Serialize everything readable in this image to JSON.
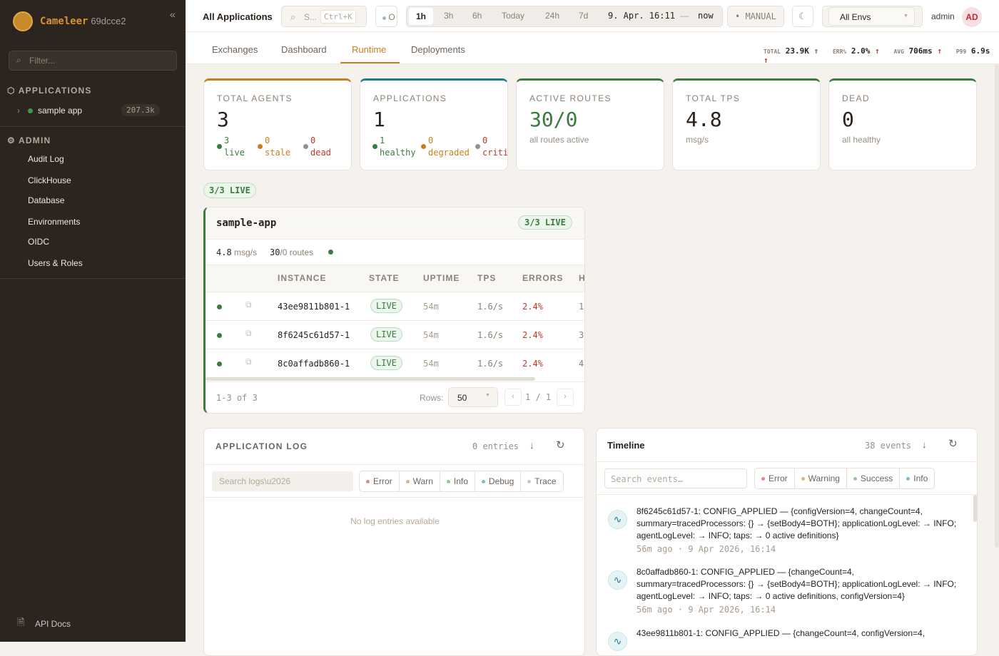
{
  "sidebar": {
    "brand": "Cameleer",
    "version": "69dcce2",
    "filter_placeholder": "Filter...",
    "applications_label": "APPLICATIONS",
    "apps": [
      {
        "name": "sample app",
        "count": "207.3k"
      }
    ],
    "admin_label": "ADMIN",
    "admin_items": [
      "Audit Log",
      "ClickHouse",
      "Database",
      "Environments",
      "OIDC",
      "Users & Roles"
    ],
    "api_docs": "API Docs"
  },
  "topbar": {
    "title": "All Applications",
    "search_placeholder": "S...",
    "search_shortcut": "Ctrl+K",
    "status": "O",
    "ranges": [
      "1h",
      "3h",
      "6h",
      "Today",
      "24h",
      "7d"
    ],
    "active_range": "1h",
    "range_from": "9. Apr. 16:11",
    "range_sep": "—",
    "range_to": "now",
    "refresh_mode": "MANUAL",
    "env": "All Envs",
    "user": "admin",
    "avatar": "AD"
  },
  "tabs": {
    "items": [
      "Exchanges",
      "Dashboard",
      "Runtime",
      "Deployments"
    ],
    "active": "Runtime"
  },
  "metrics": {
    "total_label": "TOTAL",
    "total": "23.9K",
    "err_label": "ERR%",
    "err": "2.0%",
    "avg_label": "AVG",
    "avg": "706ms",
    "p99_label": "P99",
    "p99": "6.9s",
    "arrow": "↑"
  },
  "kpis": [
    {
      "label": "TOTAL AGENTS",
      "value": "3",
      "color": "#c67f1c",
      "stats": [
        {
          "n": "3",
          "l": "live"
        },
        {
          "n": "0",
          "l": "stale"
        },
        {
          "n": "0",
          "l": "dead"
        }
      ]
    },
    {
      "label": "APPLICATIONS",
      "value": "1",
      "color": "#1f7a8c",
      "stats": [
        {
          "n": "1",
          "l": "healthy"
        },
        {
          "n": "0",
          "l": "degraded"
        },
        {
          "n": "0",
          "l": "criti"
        }
      ]
    },
    {
      "label": "ACTIVE ROUTES",
      "value": "30/0",
      "color": "#3d7a3f",
      "sub": "all routes active"
    },
    {
      "label": "TOTAL TPS",
      "value": "4.8",
      "color": "#c67f1c",
      "sub": "msg/s"
    },
    {
      "label": "DEAD",
      "value": "0",
      "color": "#3d7a3f",
      "sub": "all healthy"
    }
  ],
  "live_badge": "3/3 LIVE",
  "app_card": {
    "name": "sample-app",
    "badge": "3/3 LIVE",
    "tps": "4.8",
    "tps_unit": "msg/s",
    "routes": "30",
    "routes_rest": "/0 routes",
    "columns": [
      "INSTANCE",
      "STATE",
      "UPTIME",
      "TPS",
      "ERRORS",
      "H"
    ],
    "rows": [
      {
        "instance": "43ee9811b801-1",
        "state": "LIVE",
        "uptime": "54m",
        "tps": "1.6/s",
        "errors": "2.4%",
        "h": "1"
      },
      {
        "instance": "8f6245c61d57-1",
        "state": "LIVE",
        "uptime": "54m",
        "tps": "1.6/s",
        "errors": "2.4%",
        "h": "3"
      },
      {
        "instance": "8c0affadb860-1",
        "state": "LIVE",
        "uptime": "54m",
        "tps": "1.6/s",
        "errors": "2.4%",
        "h": "4"
      }
    ],
    "range": "1-3 of 3",
    "rows_label": "Rows:",
    "rows_value": "50",
    "page": "1 / 1",
    "prev": "‹",
    "next": "›"
  },
  "log": {
    "title": "APPLICATION LOG",
    "entries": "0 entries",
    "search_placeholder": "Search logs\\u2026",
    "levels": [
      {
        "l": "Error",
        "c": "#e08a8a"
      },
      {
        "l": "Warn",
        "c": "#e6b27a"
      },
      {
        "l": "Info",
        "c": "#9cc59e"
      },
      {
        "l": "Debug",
        "c": "#7fbcc8"
      },
      {
        "l": "Trace",
        "c": "#cfc8c0"
      }
    ],
    "empty": "No log entries available"
  },
  "timeline": {
    "title": "Timeline",
    "count": "38 events",
    "search_placeholder": "Search events…",
    "levels": [
      {
        "l": "Error",
        "c": "#e08a8a"
      },
      {
        "l": "Warning",
        "c": "#e6b27a"
      },
      {
        "l": "Success",
        "c": "#9cc59e"
      },
      {
        "l": "Info",
        "c": "#7fbcc8"
      }
    ],
    "events": [
      {
        "text": "8f6245c61d57-1: CONFIG_APPLIED — {configVersion=4, changeCount=4, summary=tracedProcessors: {} → {setBody4=BOTH}; applicationLogLevel: → INFO; agentLogLevel: → INFO; taps: → 0 active definitions}",
        "time": "56m ago · 9 Apr 2026, 16:14"
      },
      {
        "text": "8c0affadb860-1: CONFIG_APPLIED — {changeCount=4, summary=tracedProcessors: {} → {setBody4=BOTH}; applicationLogLevel: → INFO; agentLogLevel: → INFO; taps: → 0 active definitions, configVersion=4}",
        "time": "56m ago · 9 Apr 2026, 16:14"
      },
      {
        "text": "43ee9811b801-1: CONFIG_APPLIED — {changeCount=4, configVersion=4,",
        "time": ""
      }
    ]
  }
}
